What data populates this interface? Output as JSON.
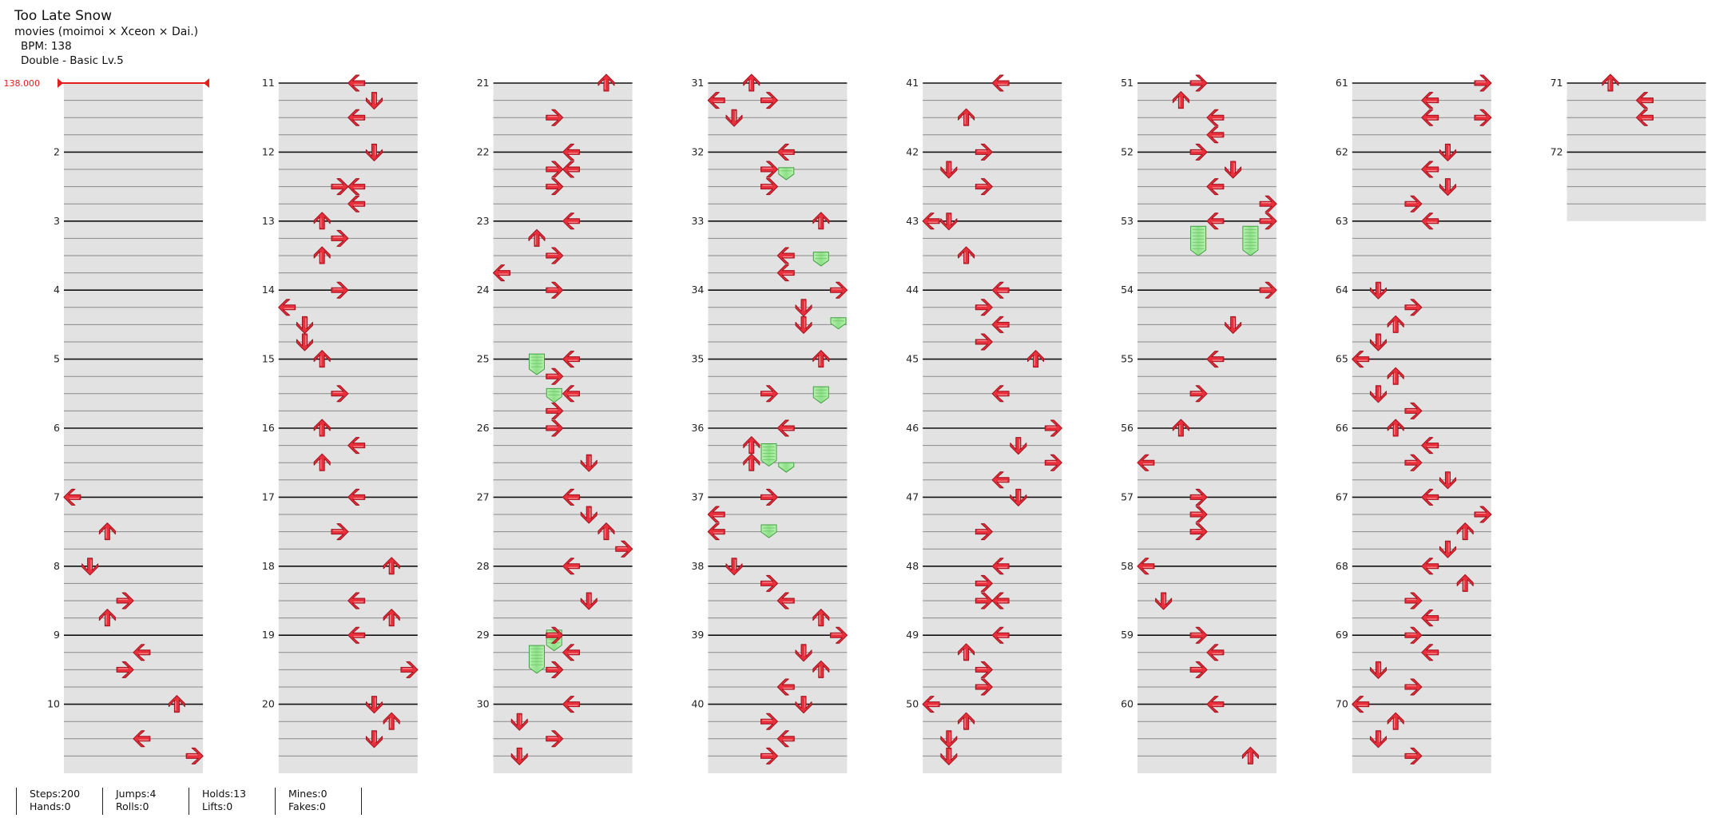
{
  "song": {
    "title": "Too Late Snow",
    "artist": "movies (moimoi × Xceon × Dai.)",
    "bpm": "BPM: 138",
    "chart": "Double - Basic  Lv.5"
  },
  "bpm_marker": "138.000",
  "measure_numbers": [
    "",
    "2",
    "3",
    "4",
    "5",
    "6",
    "7",
    "8",
    "9",
    "10",
    "11",
    "12",
    "13",
    "14",
    "15",
    "16",
    "17",
    "18",
    "19",
    "20",
    "21",
    "22",
    "23",
    "24",
    "25",
    "26",
    "27",
    "28",
    "29",
    "30",
    "31",
    "32",
    "33",
    "34",
    "35",
    "36",
    "37",
    "38",
    "39",
    "40",
    "41",
    "42",
    "43",
    "44",
    "45",
    "46",
    "47",
    "48",
    "49",
    "50",
    "51",
    "52",
    "53",
    "54",
    "55",
    "56",
    "57",
    "58",
    "59",
    "60",
    "61",
    "62",
    "63",
    "64",
    "65",
    "66",
    "67",
    "68",
    "69",
    "70",
    "71",
    "72"
  ],
  "colors": {
    "arrow": "#e8303c",
    "arrow_outline": "#a0101c",
    "hold": "#98e890",
    "hold_outline": "#40a040",
    "measure_band": "#e2e2e2",
    "measure_line": "#111111",
    "bpm_marker": "#e02020"
  },
  "icons": {
    "left": "left-arrow-icon",
    "down": "down-arrow-icon",
    "up": "up-arrow-icon",
    "right": "right-arrow-icon",
    "hold": "hold-note-icon"
  },
  "stats": {
    "steps": "Steps:200",
    "jumps": "Jumps:4",
    "holds": "Holds:13",
    "mines": "Mines:0",
    "hands": "Hands:0",
    "rolls": "Rolls:0",
    "lifts": "Lifts:0",
    "fakes": "Fakes:0"
  },
  "notes": [
    [
      7,
      0,
      0
    ],
    [
      7,
      2,
      2
    ],
    [
      8,
      0,
      1
    ],
    [
      8,
      2,
      3
    ],
    [
      8,
      3,
      2
    ],
    [
      9,
      1,
      4
    ],
    [
      9,
      2,
      3
    ],
    [
      10,
      0,
      6
    ],
    [
      10,
      2,
      4
    ],
    [
      10,
      3,
      7
    ],
    [
      11,
      0,
      4
    ],
    [
      11,
      1,
      5
    ],
    [
      11,
      2,
      4
    ],
    [
      12,
      0,
      5
    ],
    [
      12,
      2,
      3
    ],
    [
      12,
      2,
      4
    ],
    [
      12,
      3,
      4
    ],
    [
      13,
      0,
      2
    ],
    [
      13,
      1,
      3
    ],
    [
      13,
      2,
      2
    ],
    [
      14,
      0,
      3
    ],
    [
      14,
      1,
      0
    ],
    [
      14,
      2,
      1
    ],
    [
      14,
      3,
      1
    ],
    [
      15,
      0,
      2
    ],
    [
      15,
      2,
      3
    ],
    [
      16,
      0,
      2
    ],
    [
      16,
      1,
      4
    ],
    [
      16,
      2,
      2
    ],
    [
      17,
      0,
      4
    ],
    [
      17,
      2,
      3
    ],
    [
      18,
      0,
      6
    ],
    [
      18,
      2,
      4
    ],
    [
      18,
      3,
      6
    ],
    [
      19,
      0,
      4
    ],
    [
      19,
      2,
      7
    ],
    [
      20,
      0,
      5
    ],
    [
      20,
      1,
      6
    ],
    [
      20,
      2,
      5
    ],
    [
      21,
      0,
      6
    ],
    [
      21,
      2,
      3
    ],
    [
      22,
      0,
      4
    ],
    [
      22,
      1,
      3
    ],
    [
      22,
      1,
      4
    ],
    [
      22,
      2,
      3
    ],
    [
      23,
      0,
      4
    ],
    [
      23,
      1,
      2
    ],
    [
      23,
      2,
      3
    ],
    [
      23,
      3,
      0
    ],
    [
      24,
      0,
      3
    ],
    [
      25,
      0,
      4
    ],
    [
      25,
      1,
      3
    ],
    [
      25,
      2,
      4
    ],
    [
      25,
      3,
      3
    ],
    [
      26,
      0,
      3
    ],
    [
      26,
      2,
      5
    ],
    [
      27,
      0,
      4
    ],
    [
      27,
      1,
      5
    ],
    [
      27,
      2,
      6
    ],
    [
      27,
      3,
      7
    ],
    [
      28,
      0,
      4
    ],
    [
      28,
      2,
      5
    ],
    [
      29,
      0,
      3
    ],
    [
      29,
      1,
      4
    ],
    [
      29,
      2,
      3
    ],
    [
      30,
      0,
      4
    ],
    [
      30,
      1,
      1
    ],
    [
      30,
      2,
      3
    ],
    [
      30,
      3,
      1
    ],
    [
      31,
      0,
      2
    ],
    [
      31,
      1,
      0
    ],
    [
      31,
      1,
      3
    ],
    [
      31,
      2,
      1
    ],
    [
      32,
      0,
      4
    ],
    [
      32,
      1,
      3
    ],
    [
      32,
      2,
      3
    ],
    [
      33,
      0,
      6
    ],
    [
      33,
      2,
      4
    ],
    [
      33,
      3,
      4
    ],
    [
      34,
      0,
      7
    ],
    [
      34,
      1,
      5
    ],
    [
      34,
      2,
      5
    ],
    [
      35,
      0,
      6
    ],
    [
      35,
      2,
      3
    ],
    [
      36,
      0,
      4
    ],
    [
      36,
      1,
      2
    ],
    [
      36,
      2,
      2
    ],
    [
      37,
      0,
      3
    ],
    [
      37,
      1,
      0
    ],
    [
      37,
      2,
      0
    ],
    [
      38,
      0,
      1
    ],
    [
      38,
      1,
      3
    ],
    [
      38,
      2,
      4
    ],
    [
      38,
      3,
      6
    ],
    [
      39,
      0,
      7
    ],
    [
      39,
      1,
      5
    ],
    [
      39,
      2,
      6
    ],
    [
      39,
      3,
      4
    ],
    [
      40,
      0,
      5
    ],
    [
      40,
      1,
      3
    ],
    [
      40,
      2,
      4
    ],
    [
      40,
      3,
      3
    ],
    [
      41,
      0,
      4
    ],
    [
      41,
      2,
      2
    ],
    [
      42,
      0,
      3
    ],
    [
      42,
      1,
      1
    ],
    [
      42,
      2,
      3
    ],
    [
      43,
      0,
      0
    ],
    [
      43,
      0,
      1
    ],
    [
      43,
      2,
      2
    ],
    [
      44,
      0,
      4
    ],
    [
      44,
      1,
      3
    ],
    [
      44,
      2,
      4
    ],
    [
      44,
      3,
      3
    ],
    [
      45,
      0,
      6
    ],
    [
      45,
      2,
      4
    ],
    [
      46,
      0,
      7
    ],
    [
      46,
      1,
      5
    ],
    [
      46,
      2,
      7
    ],
    [
      46,
      3,
      4
    ],
    [
      47,
      0,
      5
    ],
    [
      47,
      2,
      3
    ],
    [
      48,
      0,
      4
    ],
    [
      48,
      1,
      3
    ],
    [
      48,
      2,
      3
    ],
    [
      48,
      2,
      4
    ],
    [
      49,
      0,
      4
    ],
    [
      49,
      1,
      2
    ],
    [
      49,
      2,
      3
    ],
    [
      49,
      3,
      3
    ],
    [
      50,
      0,
      0
    ],
    [
      50,
      1,
      2
    ],
    [
      50,
      2,
      1
    ],
    [
      50,
      3,
      1
    ],
    [
      51,
      0,
      3
    ],
    [
      51,
      1,
      2
    ],
    [
      51,
      2,
      4
    ],
    [
      51,
      3,
      4
    ],
    [
      52,
      0,
      3
    ],
    [
      52,
      1,
      5
    ],
    [
      52,
      2,
      4
    ],
    [
      52,
      3,
      7
    ],
    [
      53,
      0,
      4
    ],
    [
      53,
      0,
      7
    ],
    [
      54,
      0,
      7
    ],
    [
      54,
      2,
      5
    ],
    [
      55,
      0,
      4
    ],
    [
      55,
      2,
      3
    ],
    [
      56,
      0,
      2
    ],
    [
      56,
      2,
      0
    ],
    [
      57,
      0,
      3
    ],
    [
      57,
      1,
      3
    ],
    [
      57,
      2,
      3
    ],
    [
      58,
      0,
      0
    ],
    [
      58,
      2,
      1
    ],
    [
      59,
      0,
      3
    ],
    [
      59,
      1,
      4
    ],
    [
      59,
      2,
      3
    ],
    [
      60,
      0,
      4
    ],
    [
      60,
      3,
      6
    ],
    [
      61,
      0,
      7
    ],
    [
      61,
      1,
      4
    ],
    [
      61,
      2,
      4
    ],
    [
      61,
      2,
      7
    ],
    [
      62,
      0,
      5
    ],
    [
      62,
      1,
      4
    ],
    [
      62,
      2,
      5
    ],
    [
      62,
      3,
      3
    ],
    [
      63,
      0,
      4
    ],
    [
      64,
      0,
      1
    ],
    [
      64,
      1,
      3
    ],
    [
      64,
      2,
      2
    ],
    [
      64,
      3,
      1
    ],
    [
      65,
      0,
      0
    ],
    [
      65,
      1,
      2
    ],
    [
      65,
      2,
      1
    ],
    [
      65,
      3,
      3
    ],
    [
      66,
      0,
      2
    ],
    [
      66,
      1,
      4
    ],
    [
      66,
      2,
      3
    ],
    [
      66,
      3,
      5
    ],
    [
      67,
      0,
      4
    ],
    [
      67,
      1,
      7
    ],
    [
      67,
      2,
      6
    ],
    [
      67,
      3,
      5
    ],
    [
      68,
      0,
      4
    ],
    [
      68,
      1,
      6
    ],
    [
      68,
      2,
      3
    ],
    [
      68,
      3,
      4
    ],
    [
      69,
      0,
      3
    ],
    [
      69,
      1,
      4
    ],
    [
      69,
      2,
      1
    ],
    [
      69,
      3,
      3
    ],
    [
      70,
      0,
      0
    ],
    [
      70,
      1,
      2
    ],
    [
      70,
      2,
      1
    ],
    [
      70,
      3,
      3
    ],
    [
      71,
      0,
      2
    ],
    [
      71,
      1,
      4
    ],
    [
      71,
      2,
      4
    ]
  ],
  "holds": [
    [
      25,
      -0.3,
      2,
      0.9
    ],
    [
      25,
      1.7,
      3,
      2.5
    ],
    [
      29,
      -0.3,
      3,
      0.9
    ],
    [
      29,
      0.6,
      2,
      2.2
    ],
    [
      32,
      0.9,
      4,
      1.6
    ],
    [
      33,
      1.8,
      6,
      2.6
    ],
    [
      34,
      1.6,
      7,
      2.25
    ],
    [
      35,
      1.6,
      6,
      2.55
    ],
    [
      36,
      0.9,
      3,
      2.2
    ],
    [
      36,
      2.0,
      4,
      2.55
    ],
    [
      37,
      1.6,
      3,
      2.35
    ],
    [
      53,
      0.3,
      3,
      2.0
    ],
    [
      53,
      0.3,
      6,
      2.0
    ]
  ]
}
